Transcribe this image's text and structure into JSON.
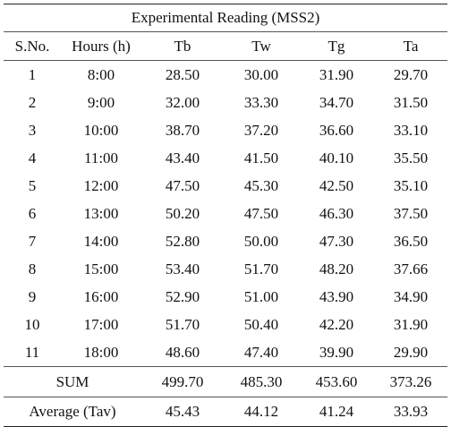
{
  "table": {
    "title": "Experimental Reading (MSS2)",
    "columns": [
      "S.No.",
      "Hours (h)",
      "Tb",
      "Tw",
      "Tg",
      "Ta"
    ],
    "rows": [
      [
        "1",
        "8:00",
        "28.50",
        "30.00",
        "31.90",
        "29.70"
      ],
      [
        "2",
        "9:00",
        "32.00",
        "33.30",
        "34.70",
        "31.50"
      ],
      [
        "3",
        "10:00",
        "38.70",
        "37.20",
        "36.60",
        "33.10"
      ],
      [
        "4",
        "11:00",
        "43.40",
        "41.50",
        "40.10",
        "35.50"
      ],
      [
        "5",
        "12:00",
        "47.50",
        "45.30",
        "42.50",
        "35.10"
      ],
      [
        "6",
        "13:00",
        "50.20",
        "47.50",
        "46.30",
        "37.50"
      ],
      [
        "7",
        "14:00",
        "52.80",
        "50.00",
        "47.30",
        "36.50"
      ],
      [
        "8",
        "15:00",
        "53.40",
        "51.70",
        "48.20",
        "37.66"
      ],
      [
        "9",
        "16:00",
        "52.90",
        "51.00",
        "43.90",
        "34.90"
      ],
      [
        "10",
        "17:00",
        "51.70",
        "50.40",
        "42.20",
        "31.90"
      ],
      [
        "11",
        "18:00",
        "48.60",
        "47.40",
        "39.90",
        "29.90"
      ]
    ],
    "sum": {
      "label": "SUM",
      "values": [
        "499.70",
        "485.30",
        "453.60",
        "373.26"
      ]
    },
    "average": {
      "label": "Average (Tav)",
      "values": [
        "45.43",
        "44.12",
        "41.24",
        "33.93"
      ]
    }
  }
}
